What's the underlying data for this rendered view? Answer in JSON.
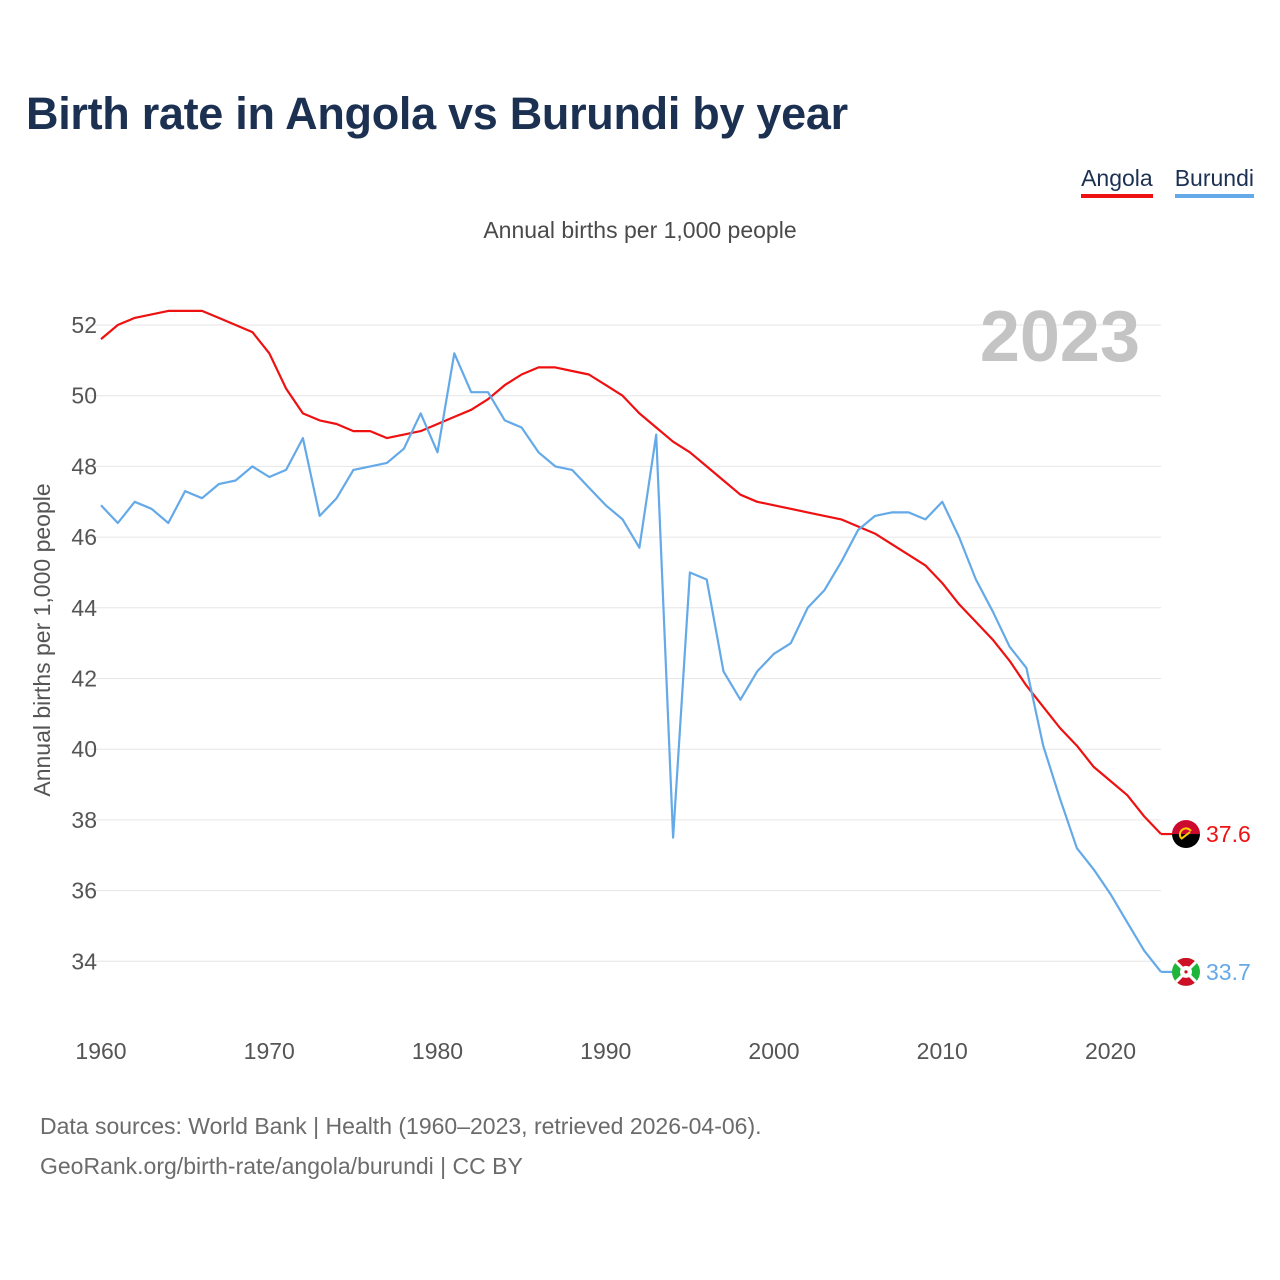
{
  "chart_data": {
    "type": "line",
    "title": "Birth rate in Angola vs Burundi by year",
    "subtitle": "Annual births per 1,000 people",
    "ylabel": "Annual births per 1,000 people",
    "xlabel": "",
    "year_watermark": "2023",
    "xlim": [
      1960,
      2023
    ],
    "ylim": [
      33,
      53.5
    ],
    "x_ticks": [
      1960,
      1970,
      1980,
      1990,
      2000,
      2010,
      2020
    ],
    "y_ticks": [
      34,
      36,
      38,
      40,
      42,
      44,
      46,
      48,
      50,
      52
    ],
    "grid": true,
    "legend_position": "top-right",
    "x": [
      1960,
      1961,
      1962,
      1963,
      1964,
      1965,
      1966,
      1967,
      1968,
      1969,
      1970,
      1971,
      1972,
      1973,
      1974,
      1975,
      1976,
      1977,
      1978,
      1979,
      1980,
      1981,
      1982,
      1983,
      1984,
      1985,
      1986,
      1987,
      1988,
      1989,
      1990,
      1991,
      1992,
      1993,
      1994,
      1995,
      1996,
      1997,
      1998,
      1999,
      2000,
      2001,
      2002,
      2003,
      2004,
      2005,
      2006,
      2007,
      2008,
      2009,
      2010,
      2011,
      2012,
      2013,
      2014,
      2015,
      2016,
      2017,
      2018,
      2019,
      2020,
      2021,
      2022,
      2023
    ],
    "series": [
      {
        "name": "Angola",
        "color": "#ee1111",
        "end_label": "37.6",
        "flag_icon": "angola-flag-icon",
        "values": [
          51.6,
          52.0,
          52.2,
          52.3,
          52.4,
          52.4,
          52.4,
          52.2,
          52.0,
          51.8,
          51.2,
          50.2,
          49.5,
          49.3,
          49.2,
          49.0,
          49.0,
          48.8,
          48.9,
          49.0,
          49.2,
          49.4,
          49.6,
          49.9,
          50.3,
          50.6,
          50.8,
          50.8,
          50.7,
          50.6,
          50.3,
          50.0,
          49.5,
          49.1,
          48.7,
          48.4,
          48.0,
          47.6,
          47.2,
          47.0,
          46.9,
          46.8,
          46.7,
          46.6,
          46.5,
          46.3,
          46.1,
          45.8,
          45.5,
          45.2,
          44.7,
          44.1,
          43.6,
          43.1,
          42.5,
          41.8,
          41.2,
          40.6,
          40.1,
          39.5,
          39.1,
          38.7,
          38.1,
          37.6
        ]
      },
      {
        "name": "Burundi",
        "color": "#64a9e8",
        "end_label": "33.7",
        "flag_icon": "burundi-flag-icon",
        "values": [
          46.9,
          46.4,
          47.0,
          46.8,
          46.4,
          47.3,
          47.1,
          47.5,
          47.6,
          48.0,
          47.7,
          47.9,
          48.8,
          46.6,
          47.1,
          47.9,
          48.0,
          48.1,
          48.5,
          49.5,
          48.4,
          51.2,
          50.1,
          50.1,
          49.3,
          49.1,
          48.4,
          48.0,
          47.9,
          47.4,
          46.9,
          46.5,
          45.7,
          48.9,
          37.5,
          45.0,
          44.8,
          42.2,
          41.4,
          42.2,
          42.7,
          43.0,
          44.0,
          44.5,
          45.3,
          46.2,
          46.6,
          46.7,
          46.7,
          46.5,
          47.0,
          46.0,
          44.8,
          43.9,
          42.9,
          42.3,
          40.1,
          38.6,
          37.2,
          36.6,
          35.9,
          35.1,
          34.3,
          33.7
        ]
      }
    ]
  },
  "footer": {
    "source_line": "Data sources: World Bank | Health (1960–2023, retrieved 2026-04-06).",
    "credit_line": "GeoRank.org/birth-rate/angola/burundi | CC BY"
  }
}
